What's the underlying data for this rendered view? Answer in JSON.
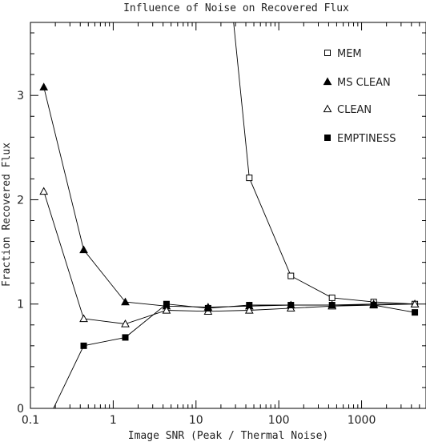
{
  "chart_data": {
    "type": "line",
    "title": "Influence of Noise on Recovered Flux",
    "xlabel": "Image SNR (Peak / Thermal Noise)",
    "ylabel": "Fraction Recovered Flux",
    "x_scale": "log",
    "xlim": [
      0.1,
      6000
    ],
    "ylim": [
      0,
      3.7
    ],
    "xticks": [
      0.1,
      1,
      10,
      100,
      1000
    ],
    "xtick_labels": [
      "0.1",
      "1",
      "10",
      "100",
      "1000"
    ],
    "yticks": [
      0,
      1,
      2,
      3
    ],
    "ytick_labels": [
      "0",
      "1",
      "2",
      "3"
    ],
    "grid": false,
    "legend_position": "top-right",
    "series": [
      {
        "name": "MEM",
        "marker": "open-square",
        "x": [
          14.5,
          44,
          140,
          440,
          1400,
          4400
        ],
        "y": [
          6.0,
          2.21,
          1.27,
          1.06,
          1.02,
          1.0
        ]
      },
      {
        "name": "MS CLEAN",
        "marker": "filled-triangle",
        "x": [
          0.145,
          0.44,
          1.4,
          4.4,
          14,
          44,
          140,
          440,
          1400,
          4400
        ],
        "y": [
          3.08,
          1.52,
          1.02,
          0.98,
          0.97,
          0.98,
          0.99,
          0.99,
          1.0,
          1.0
        ]
      },
      {
        "name": "CLEAN",
        "marker": "open-triangle",
        "x": [
          0.145,
          0.44,
          1.4,
          4.4,
          14,
          44,
          140,
          440,
          1400,
          4400
        ],
        "y": [
          2.08,
          0.86,
          0.81,
          0.94,
          0.93,
          0.94,
          0.96,
          0.98,
          0.99,
          1.0
        ]
      },
      {
        "name": "EMPTINESS",
        "marker": "filled-square",
        "x": [
          0.165,
          0.44,
          1.4,
          4.4,
          14,
          44,
          140,
          440,
          1400,
          4400
        ],
        "y": [
          -0.1,
          0.6,
          0.68,
          1.0,
          0.96,
          0.99,
          0.99,
          0.99,
          0.99,
          0.92
        ]
      }
    ]
  }
}
